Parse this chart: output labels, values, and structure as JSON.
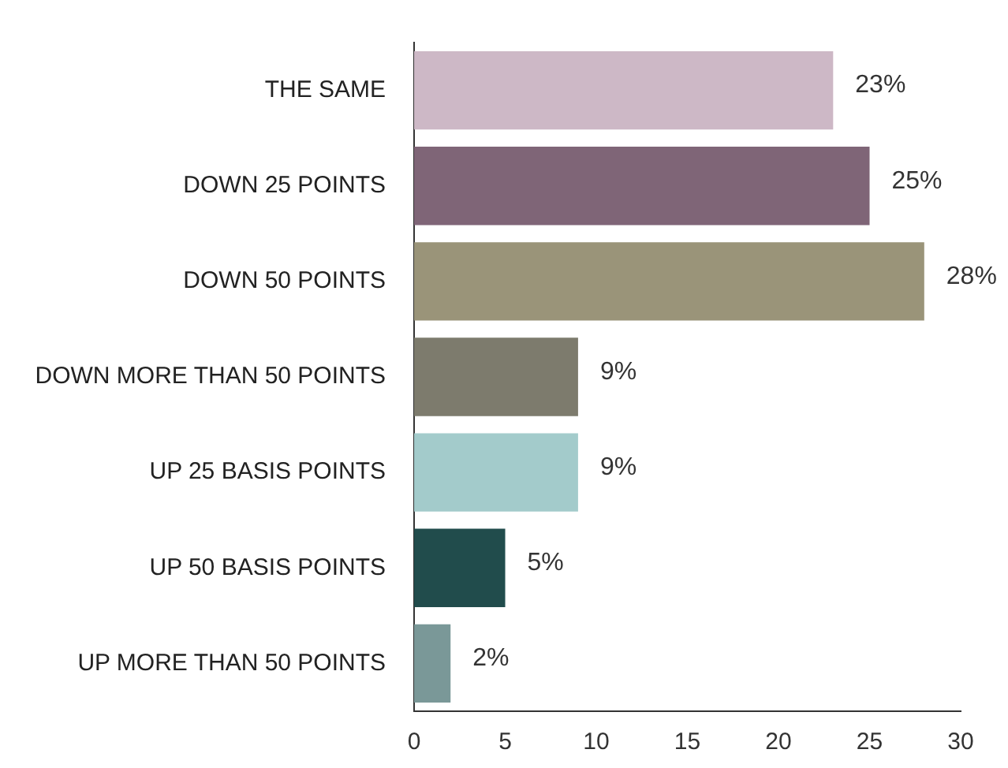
{
  "chart_data": {
    "type": "bar",
    "orientation": "horizontal",
    "categories": [
      "THE SAME",
      "DOWN 25 POINTS",
      "DOWN 50 POINTS",
      "DOWN MORE THAN 50 POINTS",
      "UP 25 BASIS POINTS",
      "UP 50 BASIS POINTS",
      "UP MORE THAN 50 POINTS"
    ],
    "values": [
      23,
      25,
      28,
      9,
      9,
      5,
      2
    ],
    "colors": [
      "#cdb8c6",
      "#7f6577",
      "#9a9479",
      "#7d7b6d",
      "#a3cbcb",
      "#214c4c",
      "#7a9898"
    ],
    "value_labels": [
      "23%",
      "25%",
      "28%",
      "9%",
      "9%",
      "5%",
      "2%"
    ],
    "xlim": [
      0,
      30
    ],
    "xticks": [
      0,
      5,
      10,
      15,
      20,
      25,
      30
    ],
    "grid": false,
    "legend": false
  }
}
